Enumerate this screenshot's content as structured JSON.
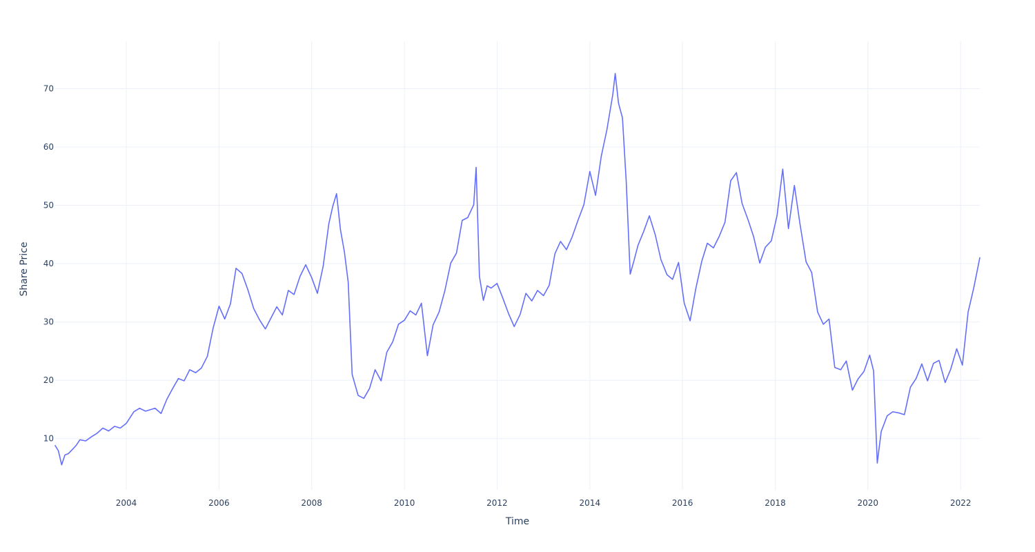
{
  "chart_data": {
    "type": "line",
    "title": "",
    "xlabel": "Time",
    "ylabel": "Share Price",
    "x_scale": "date",
    "xlim": [
      "2002-06-20",
      "2022-06-01"
    ],
    "ylim": [
      1.2,
      78.1
    ],
    "grid": true,
    "legend": "none",
    "colors": {
      "line": "#636efa",
      "grid": "#ebf0f8",
      "text": "#2a3f5f",
      "background": "#ffffff"
    },
    "x_ticks": [
      "2004",
      "2006",
      "2008",
      "2010",
      "2012",
      "2014",
      "2016",
      "2018",
      "2020",
      "2022"
    ],
    "y_ticks": [
      10,
      20,
      30,
      40,
      50,
      60,
      70
    ],
    "series": [
      {
        "x": [
          "2002-06-20",
          "2002-07-15",
          "2002-08-10",
          "2002-09-05",
          "2002-10-01",
          "2002-11-01",
          "2002-12-01",
          "2003-01-01",
          "2003-02-15",
          "2003-04-01",
          "2003-05-15",
          "2003-07-01",
          "2003-08-15",
          "2003-10-01",
          "2003-11-15",
          "2004-01-01",
          "2004-03-01",
          "2004-04-15",
          "2004-06-01",
          "2004-08-15",
          "2004-10-01",
          "2004-11-15",
          "2005-01-01",
          "2005-02-15",
          "2005-04-01",
          "2005-05-15",
          "2005-07-01",
          "2005-08-15",
          "2005-10-01",
          "2005-11-15",
          "2006-01-01",
          "2006-02-15",
          "2006-04-01",
          "2006-05-15",
          "2006-07-01",
          "2006-08-15",
          "2006-10-01",
          "2006-11-15",
          "2007-01-01",
          "2007-02-15",
          "2007-04-01",
          "2007-05-15",
          "2007-07-01",
          "2007-08-15",
          "2007-10-01",
          "2007-11-15",
          "2008-01-01",
          "2008-02-15",
          "2008-04-01",
          "2008-05-15",
          "2008-06-15",
          "2008-07-15",
          "2008-08-15",
          "2008-09-15",
          "2008-10-15",
          "2008-11-15",
          "2009-01-01",
          "2009-02-15",
          "2009-04-01",
          "2009-05-15",
          "2009-07-01",
          "2009-08-15",
          "2009-10-01",
          "2009-11-15",
          "2010-01-01",
          "2010-02-15",
          "2010-04-01",
          "2010-05-15",
          "2010-07-01",
          "2010-08-15",
          "2010-10-01",
          "2010-11-15",
          "2011-01-01",
          "2011-02-15",
          "2011-04-01",
          "2011-05-15",
          "2011-07-01",
          "2011-07-20",
          "2011-08-15",
          "2011-09-15",
          "2011-10-15",
          "2011-11-15",
          "2012-01-01",
          "2012-02-15",
          "2012-04-01",
          "2012-05-15",
          "2012-07-01",
          "2012-08-15",
          "2012-10-01",
          "2012-11-15",
          "2013-01-01",
          "2013-02-15",
          "2013-04-01",
          "2013-05-15",
          "2013-07-01",
          "2013-08-15",
          "2013-10-01",
          "2013-11-15",
          "2014-01-01",
          "2014-02-15",
          "2014-04-01",
          "2014-05-15",
          "2014-07-01",
          "2014-07-20",
          "2014-08-15",
          "2014-09-15",
          "2014-10-15",
          "2014-11-15",
          "2014-12-15",
          "2015-01-15",
          "2015-03-01",
          "2015-04-15",
          "2015-06-01",
          "2015-07-15",
          "2015-09-01",
          "2015-10-15",
          "2015-12-01",
          "2016-01-15",
          "2016-03-01",
          "2016-04-15",
          "2016-06-01",
          "2016-07-15",
          "2016-09-01",
          "2016-10-15",
          "2016-12-01",
          "2017-01-15",
          "2017-03-01",
          "2017-04-15",
          "2017-06-01",
          "2017-07-15",
          "2017-09-01",
          "2017-10-15",
          "2017-12-01",
          "2018-01-15",
          "2018-03-01",
          "2018-04-15",
          "2018-06-01",
          "2018-07-15",
          "2018-09-01",
          "2018-10-15",
          "2018-12-01",
          "2019-01-15",
          "2019-03-01",
          "2019-04-15",
          "2019-06-01",
          "2019-07-15",
          "2019-09-01",
          "2019-10-15",
          "2019-12-01",
          "2020-01-15",
          "2020-02-15",
          "2020-03-15",
          "2020-04-15",
          "2020-06-01",
          "2020-07-15",
          "2020-09-01",
          "2020-10-15",
          "2020-12-01",
          "2021-01-15",
          "2021-03-01",
          "2021-04-15",
          "2021-06-01",
          "2021-07-15",
          "2021-09-01",
          "2021-10-15",
          "2021-12-01",
          "2022-01-15",
          "2022-03-01",
          "2022-04-15",
          "2022-06-01"
        ],
        "y": [
          8.8,
          7.9,
          5.5,
          7.2,
          7.4,
          8.1,
          8.8,
          9.8,
          9.6,
          10.3,
          10.9,
          11.8,
          11.3,
          12.1,
          11.8,
          12.6,
          14.6,
          15.2,
          14.7,
          15.2,
          14.3,
          16.7,
          18.6,
          20.3,
          19.9,
          21.8,
          21.3,
          22.1,
          24.1,
          28.9,
          32.7,
          30.5,
          33.1,
          39.2,
          38.3,
          35.6,
          32.3,
          30.4,
          28.8,
          30.7,
          32.6,
          31.2,
          35.4,
          34.7,
          37.8,
          39.8,
          37.6,
          34.9,
          39.6,
          46.8,
          49.8,
          52.0,
          45.8,
          42.0,
          36.8,
          21.0,
          17.4,
          16.9,
          18.6,
          21.8,
          19.9,
          24.8,
          26.6,
          29.6,
          30.3,
          31.9,
          31.2,
          33.2,
          24.2,
          29.5,
          31.7,
          35.3,
          40.1,
          41.8,
          47.4,
          47.9,
          50.1,
          56.5,
          37.8,
          33.7,
          36.2,
          35.8,
          36.6,
          34.1,
          31.4,
          29.2,
          31.3,
          34.9,
          33.6,
          35.4,
          34.5,
          36.3,
          41.7,
          43.8,
          42.4,
          44.6,
          47.5,
          50.1,
          55.8,
          51.7,
          58.4,
          62.9,
          69.0,
          72.6,
          67.5,
          65.0,
          54.0,
          38.2,
          40.5,
          43.1,
          45.5,
          48.2,
          44.9,
          40.7,
          38.1,
          37.3,
          40.2,
          33.2,
          30.2,
          35.7,
          40.4,
          43.5,
          42.7,
          44.6,
          47.1,
          54.2,
          55.6,
          50.3,
          47.5,
          44.6,
          40.1,
          42.8,
          43.9,
          48.2,
          56.2,
          46.0,
          53.4,
          46.8,
          40.3,
          38.5,
          31.7,
          29.6,
          30.5,
          22.2,
          21.8,
          23.3,
          18.3,
          20.2,
          21.5,
          24.3,
          21.6,
          5.8,
          11.2,
          13.9,
          14.6,
          14.4,
          14.1,
          18.8,
          20.3,
          22.8,
          19.9,
          22.9,
          23.4,
          19.6,
          21.9,
          25.4,
          22.6,
          31.7,
          35.9,
          41.0
        ]
      }
    ]
  }
}
